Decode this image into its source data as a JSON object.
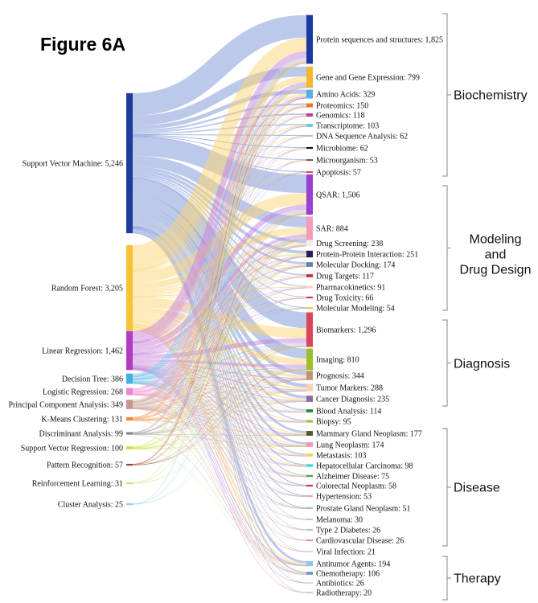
{
  "chart_data": {
    "type": "sankey",
    "title": "Figure 6A",
    "sources": [
      {
        "name": "Support Vector Machine",
        "value": 5246,
        "color": "#1d3c9b",
        "link_color": "#7b93d5"
      },
      {
        "name": "Random Forest",
        "value": 3205,
        "color": "#f7c332",
        "link_color": "#fbd571"
      },
      {
        "name": "Linear Regression",
        "value": 1462,
        "color": "#b23bc2",
        "link_color": "#c784d9"
      },
      {
        "name": "Decision Tree",
        "value": 386,
        "color": "#43b0e8",
        "link_color": "#86c9ee"
      },
      {
        "name": "Logistic Regression",
        "value": 268,
        "color": "#ee86cc",
        "link_color": "#f3a8d8"
      },
      {
        "name": "Principal Component Analysis",
        "value": 349,
        "color": "#c39a8b",
        "link_color": "#d6b3a7"
      },
      {
        "name": "K-Means Clustering",
        "value": 131,
        "color": "#f4873a",
        "link_color": "#f7a86c"
      },
      {
        "name": "Discriminant Analysis",
        "value": 99,
        "color": "#8c8c8c",
        "link_color": "#b0b0b0"
      },
      {
        "name": "Support Vector Regression",
        "value": 100,
        "color": "#c8de32",
        "link_color": "#d8e877"
      },
      {
        "name": "Pattern Recognition",
        "value": 57,
        "color": "#9a4636",
        "link_color": "#b97868"
      },
      {
        "name": "Reinforcement Learning",
        "value": 31,
        "color": "#d4de78",
        "link_color": "#e0e79c"
      },
      {
        "name": "Cluster Analysis",
        "value": 25,
        "color": "#86d4e6",
        "link_color": "#aee2ee"
      }
    ],
    "groups": [
      {
        "lines": [
          "Biochemistry"
        ],
        "nodes": [
          {
            "name": "Protein sequences and structures",
            "value": 1825,
            "color": "#1b3a9f"
          },
          {
            "name": "Gene and Gene Expression",
            "value": 799,
            "color": "#f5b52c"
          },
          {
            "name": "Amino Acids",
            "value": 329,
            "color": "#55ade2"
          },
          {
            "name": "Proteomics",
            "value": 150,
            "color": "#f07826"
          },
          {
            "name": "Genomics",
            "value": 118,
            "color": "#c0379f"
          },
          {
            "name": "Transcriptome",
            "value": 103,
            "color": "#58c6e0"
          },
          {
            "name": "DNA Sequence Analysis",
            "value": 62,
            "color": "#bfbfbf"
          },
          {
            "name": "Microbiome",
            "value": 62,
            "color": "#111111"
          },
          {
            "name": "Microorganism",
            "value": 53,
            "color": "#8b5636"
          },
          {
            "name": "Apoptosis",
            "value": 57,
            "color": "#e2406a"
          }
        ]
      },
      {
        "lines": [
          "Modeling",
          "and",
          "Drug Design"
        ],
        "nodes": [
          {
            "name": "QSAR",
            "value": 1506,
            "color": "#9a3fd2"
          },
          {
            "name": "SAR",
            "value": 884,
            "color": "#f39bb9"
          },
          {
            "name": "Drug Screening",
            "value": 238,
            "color": "#f3eee6"
          },
          {
            "name": "Protein-Protein Interaction",
            "value": 251,
            "color": "#2b1a5c"
          },
          {
            "name": "Molecular Docking",
            "value": 174,
            "color": "#5a85b2"
          },
          {
            "name": "Drug Targets",
            "value": 117,
            "color": "#d12f3e"
          },
          {
            "name": "Pharmacokinetics",
            "value": 91,
            "color": "#f6d4bf"
          },
          {
            "name": "Drug Toxicity",
            "value": 66,
            "color": "#d93a4a"
          },
          {
            "name": "Molecular Modeling",
            "value": 54,
            "color": "#f1c64a"
          }
        ]
      },
      {
        "lines": [
          "Diagnosis"
        ],
        "nodes": [
          {
            "name": "Biomarkers",
            "value": 1296,
            "color": "#d9465a"
          },
          {
            "name": "Imaging",
            "value": 810,
            "color": "#9cbf2a"
          },
          {
            "name": "Prognosis",
            "value": 344,
            "color": "#c59277"
          },
          {
            "name": "Tumor Markers",
            "value": 288,
            "color": "#f6d5b3"
          },
          {
            "name": "Cancer Diagnosis",
            "value": 235,
            "color": "#8c6a9e"
          },
          {
            "name": "Blood Analysis",
            "value": 114,
            "color": "#248a2a"
          },
          {
            "name": "Biopsy",
            "value": 95,
            "color": "#98c238"
          }
        ]
      },
      {
        "lines": [
          "Disease"
        ],
        "nodes": [
          {
            "name": "Mammary Gland Neoplasm",
            "value": 177,
            "color": "#4b5a2a"
          },
          {
            "name": "Lung Neoplasm",
            "value": 174,
            "color": "#f198b9"
          },
          {
            "name": "Metastasis",
            "value": 103,
            "color": "#f1d24b"
          },
          {
            "name": "Hepatocellular Carcinoma",
            "value": 98,
            "color": "#2fd6e8"
          },
          {
            "name": "Alzheimer Disease",
            "value": 75,
            "color": "#4aa052"
          },
          {
            "name": "Colorectal Neoplasm",
            "value": 58,
            "color": "#d7303a"
          },
          {
            "name": "Hypertension",
            "value": 53,
            "color": "#f0a0c1"
          },
          {
            "name": "Prostate Gland Neoplasm",
            "value": 51,
            "color": "#a2b6d2"
          },
          {
            "name": "Melanoma",
            "value": 30,
            "color": "#c8c8c8"
          },
          {
            "name": "Type 2 Diabetes",
            "value": 26,
            "color": "#a9c7e8"
          },
          {
            "name": "Cardiovascular Disease",
            "value": 26,
            "color": "#e891aa"
          },
          {
            "name": "Viral Infection",
            "value": 21,
            "color": "#d6d6e6"
          }
        ]
      },
      {
        "lines": [
          "Therapy"
        ],
        "nodes": [
          {
            "name": "Antitumor Agents",
            "value": 194,
            "color": "#8dc6f0"
          },
          {
            "name": "Chemotherapy",
            "value": 106,
            "color": "#6f90d2"
          },
          {
            "name": "Antibiotics",
            "value": 26,
            "color": "#cfdff0"
          },
          {
            "name": "Radiotherapy",
            "value": 20,
            "color": "#bfd0f0"
          }
        ]
      }
    ]
  }
}
